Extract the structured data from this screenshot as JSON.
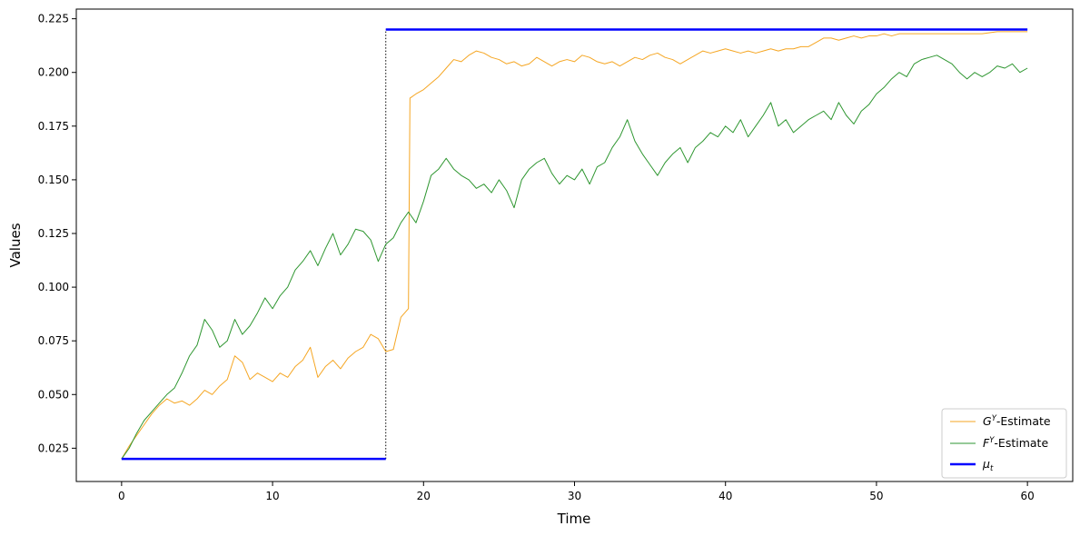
{
  "chart_data": {
    "type": "line",
    "title": "",
    "xlabel": "Time",
    "ylabel": "Values",
    "xlim": [
      -3,
      63
    ],
    "ylim": [
      0.0095,
      0.2295
    ],
    "xticks": [
      0,
      10,
      20,
      30,
      40,
      50,
      60
    ],
    "yticks": [
      0.025,
      0.05,
      0.075,
      0.1,
      0.125,
      0.15,
      0.175,
      0.2,
      0.225
    ],
    "ytick_labels": [
      "0.025",
      "0.050",
      "0.075",
      "0.100",
      "0.125",
      "0.150",
      "0.175",
      "0.200",
      "0.225"
    ],
    "grid": false,
    "legend_position": "bottom-right",
    "change_point": {
      "x": 17.5,
      "y_from": 0.02,
      "y_to": 0.22,
      "style": "dotted",
      "color": "#000000"
    },
    "series": [
      {
        "name": "G^Y-Estimate",
        "legend_label": {
          "base": "G",
          "sup": "Y",
          "rest": "-Estimate"
        },
        "color": "#f5a623",
        "width": 1,
        "points": [
          [
            0,
            0.02
          ],
          [
            0.5,
            0.026
          ],
          [
            1,
            0.031
          ],
          [
            1.5,
            0.036
          ],
          [
            2,
            0.041
          ],
          [
            2.5,
            0.045
          ],
          [
            3,
            0.048
          ],
          [
            3.5,
            0.046
          ],
          [
            4,
            0.047
          ],
          [
            4.5,
            0.045
          ],
          [
            5,
            0.048
          ],
          [
            5.5,
            0.052
          ],
          [
            6,
            0.05
          ],
          [
            6.5,
            0.054
          ],
          [
            7,
            0.057
          ],
          [
            7.5,
            0.068
          ],
          [
            8,
            0.065
          ],
          [
            8.5,
            0.057
          ],
          [
            9,
            0.06
          ],
          [
            9.5,
            0.058
          ],
          [
            10,
            0.056
          ],
          [
            10.5,
            0.06
          ],
          [
            11,
            0.058
          ],
          [
            11.5,
            0.063
          ],
          [
            12,
            0.066
          ],
          [
            12.5,
            0.072
          ],
          [
            13,
            0.058
          ],
          [
            13.5,
            0.063
          ],
          [
            14,
            0.066
          ],
          [
            14.5,
            0.062
          ],
          [
            15,
            0.067
          ],
          [
            15.5,
            0.07
          ],
          [
            16,
            0.072
          ],
          [
            16.5,
            0.078
          ],
          [
            17,
            0.076
          ],
          [
            17.5,
            0.07
          ],
          [
            18,
            0.071
          ],
          [
            18.5,
            0.086
          ],
          [
            19,
            0.09
          ],
          [
            19.1,
            0.188
          ],
          [
            19.5,
            0.19
          ],
          [
            20,
            0.192
          ],
          [
            20.5,
            0.195
          ],
          [
            21,
            0.198
          ],
          [
            21.5,
            0.202
          ],
          [
            22,
            0.206
          ],
          [
            22.5,
            0.205
          ],
          [
            23,
            0.208
          ],
          [
            23.5,
            0.21
          ],
          [
            24,
            0.209
          ],
          [
            24.5,
            0.207
          ],
          [
            25,
            0.206
          ],
          [
            25.5,
            0.204
          ],
          [
            26,
            0.205
          ],
          [
            26.5,
            0.203
          ],
          [
            27,
            0.204
          ],
          [
            27.5,
            0.207
          ],
          [
            28,
            0.205
          ],
          [
            28.5,
            0.203
          ],
          [
            29,
            0.205
          ],
          [
            29.5,
            0.206
          ],
          [
            30,
            0.205
          ],
          [
            30.5,
            0.208
          ],
          [
            31,
            0.207
          ],
          [
            31.5,
            0.205
          ],
          [
            32,
            0.204
          ],
          [
            32.5,
            0.205
          ],
          [
            33,
            0.203
          ],
          [
            33.5,
            0.205
          ],
          [
            34,
            0.207
          ],
          [
            34.5,
            0.206
          ],
          [
            35,
            0.208
          ],
          [
            35.5,
            0.209
          ],
          [
            36,
            0.207
          ],
          [
            36.5,
            0.206
          ],
          [
            37,
            0.204
          ],
          [
            37.5,
            0.206
          ],
          [
            38,
            0.208
          ],
          [
            38.5,
            0.21
          ],
          [
            39,
            0.209
          ],
          [
            39.5,
            0.21
          ],
          [
            40,
            0.211
          ],
          [
            40.5,
            0.21
          ],
          [
            41,
            0.209
          ],
          [
            41.5,
            0.21
          ],
          [
            42,
            0.209
          ],
          [
            42.5,
            0.21
          ],
          [
            43,
            0.211
          ],
          [
            43.5,
            0.21
          ],
          [
            44,
            0.211
          ],
          [
            44.5,
            0.211
          ],
          [
            45,
            0.212
          ],
          [
            45.5,
            0.212
          ],
          [
            46,
            0.214
          ],
          [
            46.5,
            0.216
          ],
          [
            47,
            0.216
          ],
          [
            47.5,
            0.215
          ],
          [
            48,
            0.216
          ],
          [
            48.5,
            0.217
          ],
          [
            49,
            0.216
          ],
          [
            49.5,
            0.217
          ],
          [
            50,
            0.217
          ],
          [
            50.5,
            0.218
          ],
          [
            51,
            0.217
          ],
          [
            51.5,
            0.218
          ],
          [
            52,
            0.218
          ],
          [
            53,
            0.218
          ],
          [
            54,
            0.218
          ],
          [
            55,
            0.218
          ],
          [
            56,
            0.218
          ],
          [
            57,
            0.218
          ],
          [
            58,
            0.219
          ],
          [
            59,
            0.219
          ],
          [
            60,
            0.219
          ]
        ]
      },
      {
        "name": "F^Y-Estimate",
        "legend_label": {
          "base": "F",
          "sup": "Y",
          "rest": "-Estimate"
        },
        "color": "#2e9630",
        "width": 1,
        "points": [
          [
            0,
            0.02
          ],
          [
            0.5,
            0.025
          ],
          [
            1,
            0.032
          ],
          [
            1.5,
            0.038
          ],
          [
            2,
            0.042
          ],
          [
            2.5,
            0.046
          ],
          [
            3,
            0.05
          ],
          [
            3.5,
            0.053
          ],
          [
            4,
            0.06
          ],
          [
            4.5,
            0.068
          ],
          [
            5,
            0.073
          ],
          [
            5.5,
            0.085
          ],
          [
            6,
            0.08
          ],
          [
            6.5,
            0.072
          ],
          [
            7,
            0.075
          ],
          [
            7.5,
            0.085
          ],
          [
            8,
            0.078
          ],
          [
            8.5,
            0.082
          ],
          [
            9,
            0.088
          ],
          [
            9.5,
            0.095
          ],
          [
            10,
            0.09
          ],
          [
            10.5,
            0.096
          ],
          [
            11,
            0.1
          ],
          [
            11.5,
            0.108
          ],
          [
            12,
            0.112
          ],
          [
            12.5,
            0.117
          ],
          [
            13,
            0.11
          ],
          [
            13.5,
            0.118
          ],
          [
            14,
            0.125
          ],
          [
            14.5,
            0.115
          ],
          [
            15,
            0.12
          ],
          [
            15.5,
            0.127
          ],
          [
            16,
            0.126
          ],
          [
            16.5,
            0.122
          ],
          [
            17,
            0.112
          ],
          [
            17.5,
            0.12
          ],
          [
            18,
            0.123
          ],
          [
            18.5,
            0.13
          ],
          [
            19,
            0.135
          ],
          [
            19.5,
            0.13
          ],
          [
            20,
            0.14
          ],
          [
            20.5,
            0.152
          ],
          [
            21,
            0.155
          ],
          [
            21.5,
            0.16
          ],
          [
            22,
            0.155
          ],
          [
            22.5,
            0.152
          ],
          [
            23,
            0.15
          ],
          [
            23.5,
            0.146
          ],
          [
            24,
            0.148
          ],
          [
            24.5,
            0.144
          ],
          [
            25,
            0.15
          ],
          [
            25.5,
            0.145
          ],
          [
            26,
            0.137
          ],
          [
            26.5,
            0.15
          ],
          [
            27,
            0.155
          ],
          [
            27.5,
            0.158
          ],
          [
            28,
            0.16
          ],
          [
            28.5,
            0.153
          ],
          [
            29,
            0.148
          ],
          [
            29.5,
            0.152
          ],
          [
            30,
            0.15
          ],
          [
            30.5,
            0.155
          ],
          [
            31,
            0.148
          ],
          [
            31.5,
            0.156
          ],
          [
            32,
            0.158
          ],
          [
            32.5,
            0.165
          ],
          [
            33,
            0.17
          ],
          [
            33.5,
            0.178
          ],
          [
            34,
            0.168
          ],
          [
            34.5,
            0.162
          ],
          [
            35,
            0.157
          ],
          [
            35.5,
            0.152
          ],
          [
            36,
            0.158
          ],
          [
            36.5,
            0.162
          ],
          [
            37,
            0.165
          ],
          [
            37.5,
            0.158
          ],
          [
            38,
            0.165
          ],
          [
            38.5,
            0.168
          ],
          [
            39,
            0.172
          ],
          [
            39.5,
            0.17
          ],
          [
            40,
            0.175
          ],
          [
            40.5,
            0.172
          ],
          [
            41,
            0.178
          ],
          [
            41.5,
            0.17
          ],
          [
            42,
            0.175
          ],
          [
            42.5,
            0.18
          ],
          [
            43,
            0.186
          ],
          [
            43.5,
            0.175
          ],
          [
            44,
            0.178
          ],
          [
            44.5,
            0.172
          ],
          [
            45,
            0.175
          ],
          [
            45.5,
            0.178
          ],
          [
            46,
            0.18
          ],
          [
            46.5,
            0.182
          ],
          [
            47,
            0.178
          ],
          [
            47.5,
            0.186
          ],
          [
            48,
            0.18
          ],
          [
            48.5,
            0.176
          ],
          [
            49,
            0.182
          ],
          [
            49.5,
            0.185
          ],
          [
            50,
            0.19
          ],
          [
            50.5,
            0.193
          ],
          [
            51,
            0.197
          ],
          [
            51.5,
            0.2
          ],
          [
            52,
            0.198
          ],
          [
            52.5,
            0.204
          ],
          [
            53,
            0.206
          ],
          [
            53.5,
            0.207
          ],
          [
            54,
            0.208
          ],
          [
            54.5,
            0.206
          ],
          [
            55,
            0.204
          ],
          [
            55.5,
            0.2
          ],
          [
            56,
            0.197
          ],
          [
            56.5,
            0.2
          ],
          [
            57,
            0.198
          ],
          [
            57.5,
            0.2
          ],
          [
            58,
            0.203
          ],
          [
            58.5,
            0.202
          ],
          [
            59,
            0.204
          ],
          [
            59.5,
            0.2
          ],
          [
            60,
            0.202
          ]
        ]
      },
      {
        "name": "mu_t",
        "legend_label": {
          "base": "μ",
          "sub": "t"
        },
        "color": "#0000ff",
        "width": 2.5,
        "segments": [
          [
            [
              0,
              0.02
            ],
            [
              17.5,
              0.02
            ]
          ],
          [
            [
              17.5,
              0.22
            ],
            [
              60,
              0.22
            ]
          ]
        ]
      }
    ]
  }
}
